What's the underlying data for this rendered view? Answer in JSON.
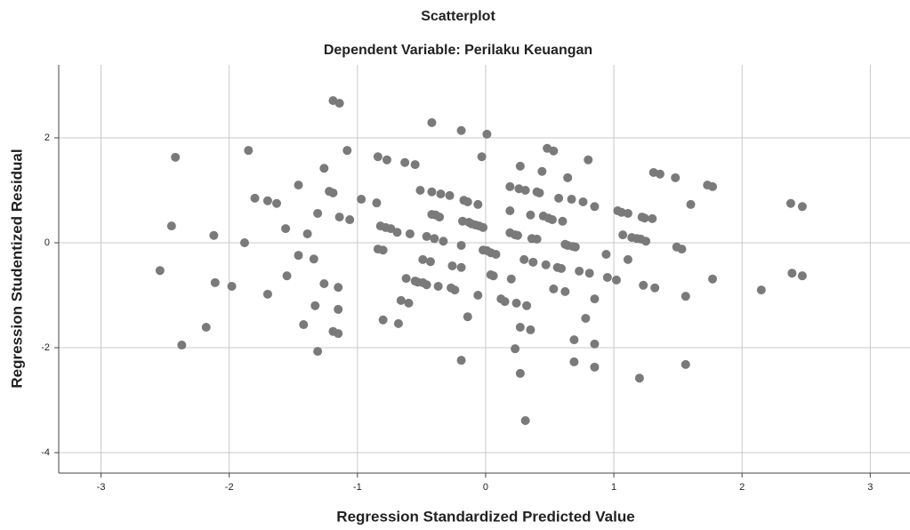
{
  "chart_data": {
    "type": "scatter",
    "title": "Scatterplot",
    "subtitle": "Dependent Variable: Perilaku Keuangan",
    "x_label": "Regression Standardized Predicted Value",
    "y_label": "Regression Studentized Residual",
    "color": "#7a7a7a",
    "grid": true,
    "xlim": [
      -3.33,
      3.31
    ],
    "ylim": [
      -4.39,
      3.39
    ],
    "xticks": [
      -3,
      -2,
      -1,
      0,
      1,
      2,
      3
    ],
    "yticks": [
      -4,
      -2,
      0,
      2
    ],
    "x": [
      -2.54,
      -2.45,
      -2.42,
      -2.37,
      -2.18,
      -2.12,
      -2.11,
      -1.98,
      -1.88,
      -1.85,
      -1.8,
      -1.7,
      -1.7,
      -1.63,
      -1.56,
      -1.55,
      -1.46,
      -1.46,
      -1.42,
      -1.39,
      -1.34,
      -1.33,
      -1.31,
      -1.31,
      -1.26,
      -1.26,
      -1.22,
      -1.19,
      -1.19,
      -1.19,
      -1.15,
      -1.14,
      -1.15,
      -1.15,
      -1.14,
      -1.08,
      -1.06,
      -0.97,
      -0.84,
      -0.85,
      -0.84,
      -0.82,
      -0.8,
      -0.8,
      -0.78,
      -0.77,
      -0.74,
      -0.69,
      -0.68,
      -0.66,
      -0.63,
      -0.62,
      -0.6,
      -0.59,
      -0.55,
      -0.55,
      -0.53,
      -0.51,
      -0.49,
      -0.49,
      -0.46,
      -0.46,
      -0.43,
      -0.42,
      -0.42,
      -0.42,
      -0.4,
      -0.39,
      -0.36,
      -0.37,
      -0.35,
      -0.33,
      -0.28,
      -0.27,
      -0.26,
      -0.24,
      -0.19,
      -0.19,
      -0.19,
      -0.19,
      -0.18,
      -0.17,
      -0.14,
      -0.14,
      -0.13,
      -0.11,
      -0.08,
      -0.06,
      -0.05,
      -0.06,
      -0.03,
      -0.02,
      -0.02,
      0.01,
      0.01,
      0.04,
      0.04,
      0.06,
      0.08,
      0.12,
      0.15,
      0.19,
      0.19,
      0.2,
      0.19,
      0.23,
      0.23,
      0.25,
      0.26,
      0.27,
      0.24,
      0.27,
      0.27,
      0.3,
      0.31,
      0.32,
      0.31,
      0.35,
      0.35,
      0.36,
      0.37,
      0.4,
      0.4,
      0.42,
      0.44,
      0.45,
      0.48,
      0.47,
      0.49,
      0.53,
      0.52,
      0.53,
      0.56,
      0.57,
      0.59,
      0.6,
      0.62,
      0.62,
      0.64,
      0.67,
      0.64,
      0.68,
      0.7,
      0.69,
      0.69,
      0.73,
      0.76,
      0.78,
      0.8,
      0.81,
      0.85,
      0.85,
      0.85,
      0.85,
      0.94,
      0.95,
      1.02,
      1.03,
      1.06,
      1.07,
      1.11,
      1.11,
      1.14,
      1.18,
      1.2,
      1.21,
      1.22,
      1.23,
      1.24,
      1.25,
      1.3,
      1.31,
      1.32,
      1.36,
      1.48,
      1.49,
      1.53,
      1.56,
      1.56,
      1.6,
      1.73,
      1.77,
      1.77,
      2.15,
      2.38,
      2.39,
      2.47,
      2.47
    ],
    "y": [
      -0.53,
      0.32,
      1.63,
      -1.95,
      -1.61,
      0.14,
      -0.76,
      -0.83,
      0.0,
      1.76,
      0.85,
      -0.98,
      0.8,
      0.75,
      0.27,
      -0.63,
      1.1,
      -0.24,
      -1.56,
      0.17,
      -0.31,
      -1.2,
      0.56,
      -2.07,
      -0.78,
      1.42,
      0.98,
      0.95,
      2.71,
      -1.69,
      -0.85,
      2.66,
      -1.73,
      -1.27,
      0.49,
      1.76,
      0.44,
      0.83,
      1.64,
      0.76,
      -0.12,
      0.32,
      -0.14,
      -1.47,
      0.29,
      1.58,
      0.27,
      0.2,
      -1.54,
      -1.1,
      1.53,
      -0.68,
      -1.15,
      0.17,
      -0.73,
      1.49,
      -0.75,
      1.0,
      -0.76,
      -0.32,
      0.12,
      -0.8,
      -0.36,
      0.97,
      0.54,
      2.29,
      0.08,
      0.53,
      0.49,
      -0.83,
      0.93,
      0.03,
      0.9,
      -0.86,
      -0.44,
      -0.9,
      -0.47,
      2.14,
      -2.24,
      -0.05,
      0.41,
      0.81,
      -1.41,
      0.78,
      0.39,
      0.36,
      0.34,
      0.73,
      0.32,
      -1.0,
      1.64,
      0.29,
      -0.14,
      2.07,
      -0.15,
      -0.61,
      -0.19,
      -0.63,
      -0.22,
      -1.07,
      -1.12,
      1.07,
      0.61,
      -0.69,
      0.19,
      0.15,
      -2.02,
      0.14,
      1.03,
      1.46,
      -1.15,
      -1.61,
      -2.49,
      -0.32,
      1.0,
      -1.2,
      -3.39,
      0.53,
      -1.66,
      0.08,
      -0.37,
      0.97,
      0.07,
      0.95,
      1.36,
      0.51,
      1.8,
      -0.42,
      0.47,
      1.75,
      0.44,
      -0.88,
      -0.47,
      0.85,
      -0.49,
      0.41,
      -0.03,
      -0.93,
      1.24,
      0.83,
      -0.05,
      -0.07,
      -0.08,
      -1.85,
      -2.27,
      -0.54,
      0.78,
      -1.44,
      1.58,
      -0.58,
      0.69,
      -1.93,
      -2.37,
      -1.07,
      -0.22,
      -0.66,
      -0.71,
      0.61,
      0.58,
      0.15,
      0.56,
      -0.32,
      0.1,
      0.08,
      -2.58,
      0.07,
      0.49,
      -0.81,
      0.47,
      0.03,
      0.46,
      1.34,
      -0.86,
      1.31,
      1.24,
      -0.08,
      -0.12,
      -1.02,
      -2.32,
      0.73,
      1.1,
      1.07,
      -0.69,
      -0.9,
      0.75,
      -0.58,
      0.69,
      -0.63
    ]
  }
}
